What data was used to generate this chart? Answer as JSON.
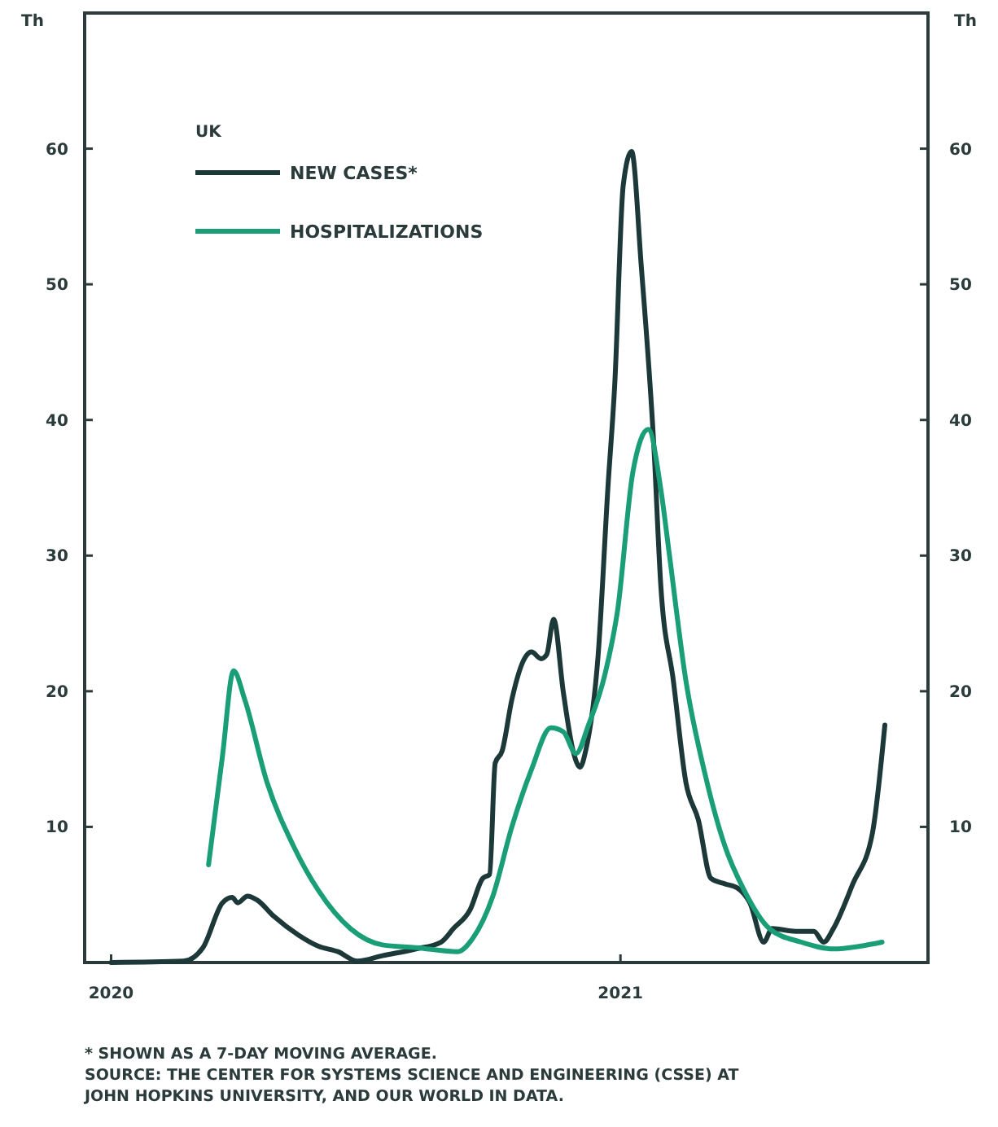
{
  "chart_data": {
    "type": "line",
    "ylabel": "Th",
    "y2label": "Th",
    "legend_title": "UK",
    "legend": "top left",
    "grid": false,
    "line_style": "solid",
    "marker": "none",
    "xlim": [
      "2019-12-13",
      "2021-08-10"
    ],
    "xticks": [
      {
        "value": "2020-01-01",
        "label": "2020"
      },
      {
        "value": "2021-01-01",
        "label": "2021"
      }
    ],
    "ylim": [
      0,
      70
    ],
    "yticks": [
      10,
      20,
      30,
      40,
      50,
      60
    ],
    "y2lim": [
      0,
      70
    ],
    "y2ticks": [
      10,
      20,
      30,
      40,
      50,
      60
    ],
    "series": [
      {
        "name": "NEW CASES*",
        "color": "#1c3838",
        "x": [
          "2020-01-01",
          "2020-02-22",
          "2020-03-07",
          "2020-03-21",
          "2020-03-28",
          "2020-04-01",
          "2020-04-08",
          "2020-04-15",
          "2020-04-27",
          "2020-05-15",
          "2020-05-29",
          "2020-06-12",
          "2020-06-26",
          "2020-07-14",
          "2020-08-07",
          "2020-08-25",
          "2020-09-03",
          "2020-09-15",
          "2020-09-24",
          "2020-09-29",
          "2020-10-03",
          "2020-10-08",
          "2020-10-15",
          "2020-10-24",
          "2020-10-29",
          "2020-11-05",
          "2020-11-09",
          "2020-11-14",
          "2020-11-21",
          "2020-11-28",
          "2020-12-03",
          "2020-12-07",
          "2020-12-16",
          "2020-12-23",
          "2020-12-28",
          "2021-01-03",
          "2021-01-09",
          "2021-01-16",
          "2021-01-25",
          "2021-01-30",
          "2021-02-08",
          "2021-02-17",
          "2021-02-26",
          "2021-03-07",
          "2021-03-17",
          "2021-03-26",
          "2021-04-04",
          "2021-04-14",
          "2021-04-20",
          "2021-05-07",
          "2021-05-20",
          "2021-05-27",
          "2021-06-03",
          "2021-06-17",
          "2021-07-01",
          "2021-07-10"
        ],
        "values": [
          0,
          0.1,
          1.1,
          4.4,
          4.8,
          4.4,
          4.9,
          4.6,
          3.4,
          2.0,
          1.2,
          0.8,
          0.1,
          0.5,
          1.0,
          1.5,
          2.5,
          3.9,
          6.2,
          6.5,
          14.7,
          15.6,
          19.4,
          22.4,
          22.9,
          22.4,
          22.7,
          25.3,
          19.9,
          15.6,
          14.4,
          15.6,
          22.7,
          35,
          42.8,
          57.3,
          59.8,
          51.3,
          38.1,
          27.8,
          20.8,
          13.3,
          10.5,
          6.2,
          5.8,
          5.5,
          4.4,
          1.5,
          2.5,
          2.3,
          2.3,
          1.5,
          2.5,
          5.8,
          9.5,
          17.5
        ]
      },
      {
        "name": "HOSPITALIZATIONS",
        "color": "#1a9e78",
        "x": [
          "2020-03-11",
          "2020-03-21",
          "2020-03-29",
          "2020-04-06",
          "2020-04-22",
          "2020-05-11",
          "2020-05-29",
          "2020-06-21",
          "2020-07-14",
          "2020-08-07",
          "2020-09-06",
          "2020-09-17",
          "2020-10-01",
          "2020-10-15",
          "2020-10-29",
          "2020-11-12",
          "2020-11-21",
          "2020-11-30",
          "2020-12-09",
          "2020-12-21",
          "2020-12-30",
          "2021-01-10",
          "2021-01-21",
          "2021-01-30",
          "2021-02-05",
          "2021-02-17",
          "2021-03-03",
          "2021-03-17",
          "2021-03-31",
          "2021-04-18",
          "2021-05-11",
          "2021-06-03",
          "2021-06-22",
          "2021-07-08"
        ],
        "values": [
          7.2,
          15.2,
          21.5,
          19.4,
          13.3,
          8.6,
          5.3,
          2.5,
          1.3,
          1.1,
          0.8,
          1.8,
          4.8,
          10,
          14.2,
          17.3,
          17,
          15.4,
          17.5,
          21.3,
          26,
          36.2,
          39.3,
          34.9,
          30.2,
          20.8,
          13.8,
          8.6,
          5.3,
          2.5,
          1.5,
          1.0,
          1.2,
          1.5
        ]
      }
    ],
    "annotations": [
      "* SHOWN AS A 7-DAY MOVING AVERAGE.",
      "SOURCE: THE CENTER FOR SYSTEMS SCIENCE AND ENGINEERING (CSSE) AT JOHN HOPKINS UNIVERSITY, AND OUR WORLD IN DATA."
    ]
  }
}
